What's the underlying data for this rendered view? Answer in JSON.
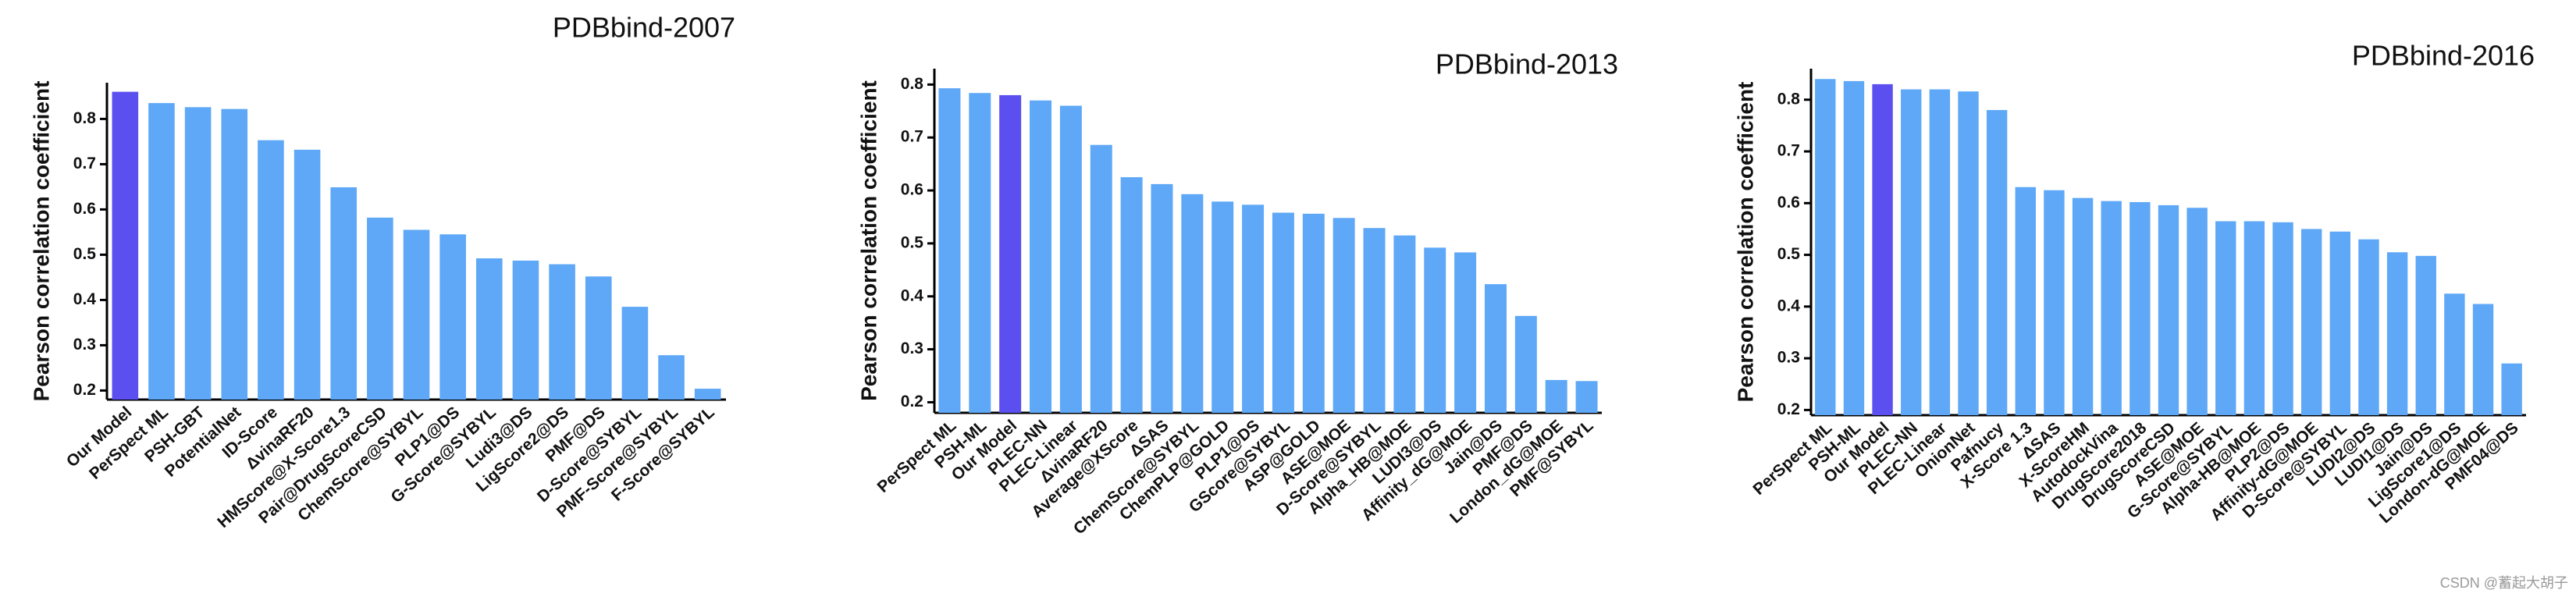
{
  "chart_data": [
    {
      "type": "bar",
      "title": "PDBbind-2007",
      "y_label": "Pearson correlation coefficient",
      "categories": [
        "Our Model",
        "PerSpect ML",
        "PSH-GBT",
        "PotentialNet",
        "ID-Score",
        "ΔvinaRF20",
        "HMScore@X-Score1.3",
        "Pair@DrugScoreCSD",
        "ChemScore@SYBYL",
        "PLP1@DS",
        "G-Score@SYBYL",
        "Ludi3@DS",
        "LigScore2@DS",
        "PMF@DS",
        "D-Score@SYBYL",
        "PMF-Score@SYBYL",
        "F-Score@SYBYL"
      ],
      "values": [
        0.86,
        0.835,
        0.826,
        0.822,
        0.753,
        0.732,
        0.649,
        0.582,
        0.555,
        0.545,
        0.492,
        0.487,
        0.479,
        0.452,
        0.385,
        0.278,
        0.204
      ],
      "colors": [
        "#5b4ff0",
        "#5ea8f7",
        "#5ea8f7",
        "#5ea8f7",
        "#5ea8f7",
        "#5ea8f7",
        "#5ea8f7",
        "#5ea8f7",
        "#5ea8f7",
        "#5ea8f7",
        "#5ea8f7",
        "#5ea8f7",
        "#5ea8f7",
        "#5ea8f7",
        "#5ea8f7",
        "#5ea8f7",
        "#5ea8f7"
      ],
      "ylim": [
        0.18,
        0.88
      ],
      "yticks": [
        0.2,
        0.3,
        0.4,
        0.5,
        0.6,
        0.7,
        0.8
      ]
    },
    {
      "type": "bar",
      "title": "PDBbind-2013",
      "y_label": "Pearson correlation coefficient",
      "categories": [
        "PerSpect ML",
        "PSH-ML",
        "Our Model",
        "PLEC-NN",
        "PLEC-Linear",
        "ΔvinaRF20",
        "Average@XScore",
        "ΔSAS",
        "ChemScore@SYBYL",
        "ChemPLP@GOLD",
        "PLP1@DS",
        "GScore@SYBYL",
        "ASP@GOLD",
        "ASE@MOE",
        "D-Score@SYBYL",
        "Alpha_HB@MOE",
        "LUDI3@DS",
        "Affinity_dG@MOE",
        "Jain@DS",
        "PMF@DS",
        "London_dG@MOE",
        "PMF@SYBYL"
      ],
      "values": [
        0.793,
        0.784,
        0.78,
        0.77,
        0.76,
        0.686,
        0.625,
        0.612,
        0.593,
        0.579,
        0.573,
        0.558,
        0.556,
        0.548,
        0.529,
        0.515,
        0.492,
        0.483,
        0.423,
        0.363,
        0.242,
        0.24
      ],
      "colors": [
        "#5ea8f7",
        "#5ea8f7",
        "#5b4ff0",
        "#5ea8f7",
        "#5ea8f7",
        "#5ea8f7",
        "#5ea8f7",
        "#5ea8f7",
        "#5ea8f7",
        "#5ea8f7",
        "#5ea8f7",
        "#5ea8f7",
        "#5ea8f7",
        "#5ea8f7",
        "#5ea8f7",
        "#5ea8f7",
        "#5ea8f7",
        "#5ea8f7",
        "#5ea8f7",
        "#5ea8f7",
        "#5ea8f7",
        "#5ea8f7"
      ],
      "ylim": [
        0.18,
        0.83
      ],
      "yticks": [
        0.2,
        0.3,
        0.4,
        0.5,
        0.6,
        0.7,
        0.8
      ]
    },
    {
      "type": "bar",
      "title": "PDBbind-2016",
      "y_label": "Pearson correlation coefficient",
      "categories": [
        "PerSpect ML",
        "PSH-ML",
        "Our Model",
        "PLEC-NN",
        "PLEC-Linear",
        "OnionNet",
        "Pafnucy",
        "X-Score 1.3",
        "ΔSAS",
        "X-ScoreHM",
        "AutodockVina",
        "DrugScore2018",
        "DrugScoreCSD",
        "ASE@MOE",
        "G-Score@SYBYL",
        "Alpha-HB@MOE",
        "PLP2@DS",
        "Affinity-dG@MOE",
        "D-Score@SYBYL",
        "LUDI2@DS",
        "LUDI1@DS",
        "Jain@DS",
        "LigScore1@DS",
        "London-dG@MOE",
        "PMF04@DS"
      ],
      "values": [
        0.84,
        0.836,
        0.83,
        0.82,
        0.82,
        0.816,
        0.78,
        0.631,
        0.625,
        0.61,
        0.604,
        0.602,
        0.596,
        0.591,
        0.565,
        0.565,
        0.563,
        0.55,
        0.545,
        0.53,
        0.505,
        0.498,
        0.425,
        0.405,
        0.29
      ],
      "colors": [
        "#5ea8f7",
        "#5ea8f7",
        "#5b4ff0",
        "#5ea8f7",
        "#5ea8f7",
        "#5ea8f7",
        "#5ea8f7",
        "#5ea8f7",
        "#5ea8f7",
        "#5ea8f7",
        "#5ea8f7",
        "#5ea8f7",
        "#5ea8f7",
        "#5ea8f7",
        "#5ea8f7",
        "#5ea8f7",
        "#5ea8f7",
        "#5ea8f7",
        "#5ea8f7",
        "#5ea8f7",
        "#5ea8f7",
        "#5ea8f7",
        "#5ea8f7",
        "#5ea8f7",
        "#5ea8f7"
      ],
      "ylim": [
        0.19,
        0.86
      ],
      "yticks": [
        0.2,
        0.3,
        0.4,
        0.5,
        0.6,
        0.7,
        0.8
      ]
    }
  ],
  "watermark": "CSDN @蓄起大胡子"
}
